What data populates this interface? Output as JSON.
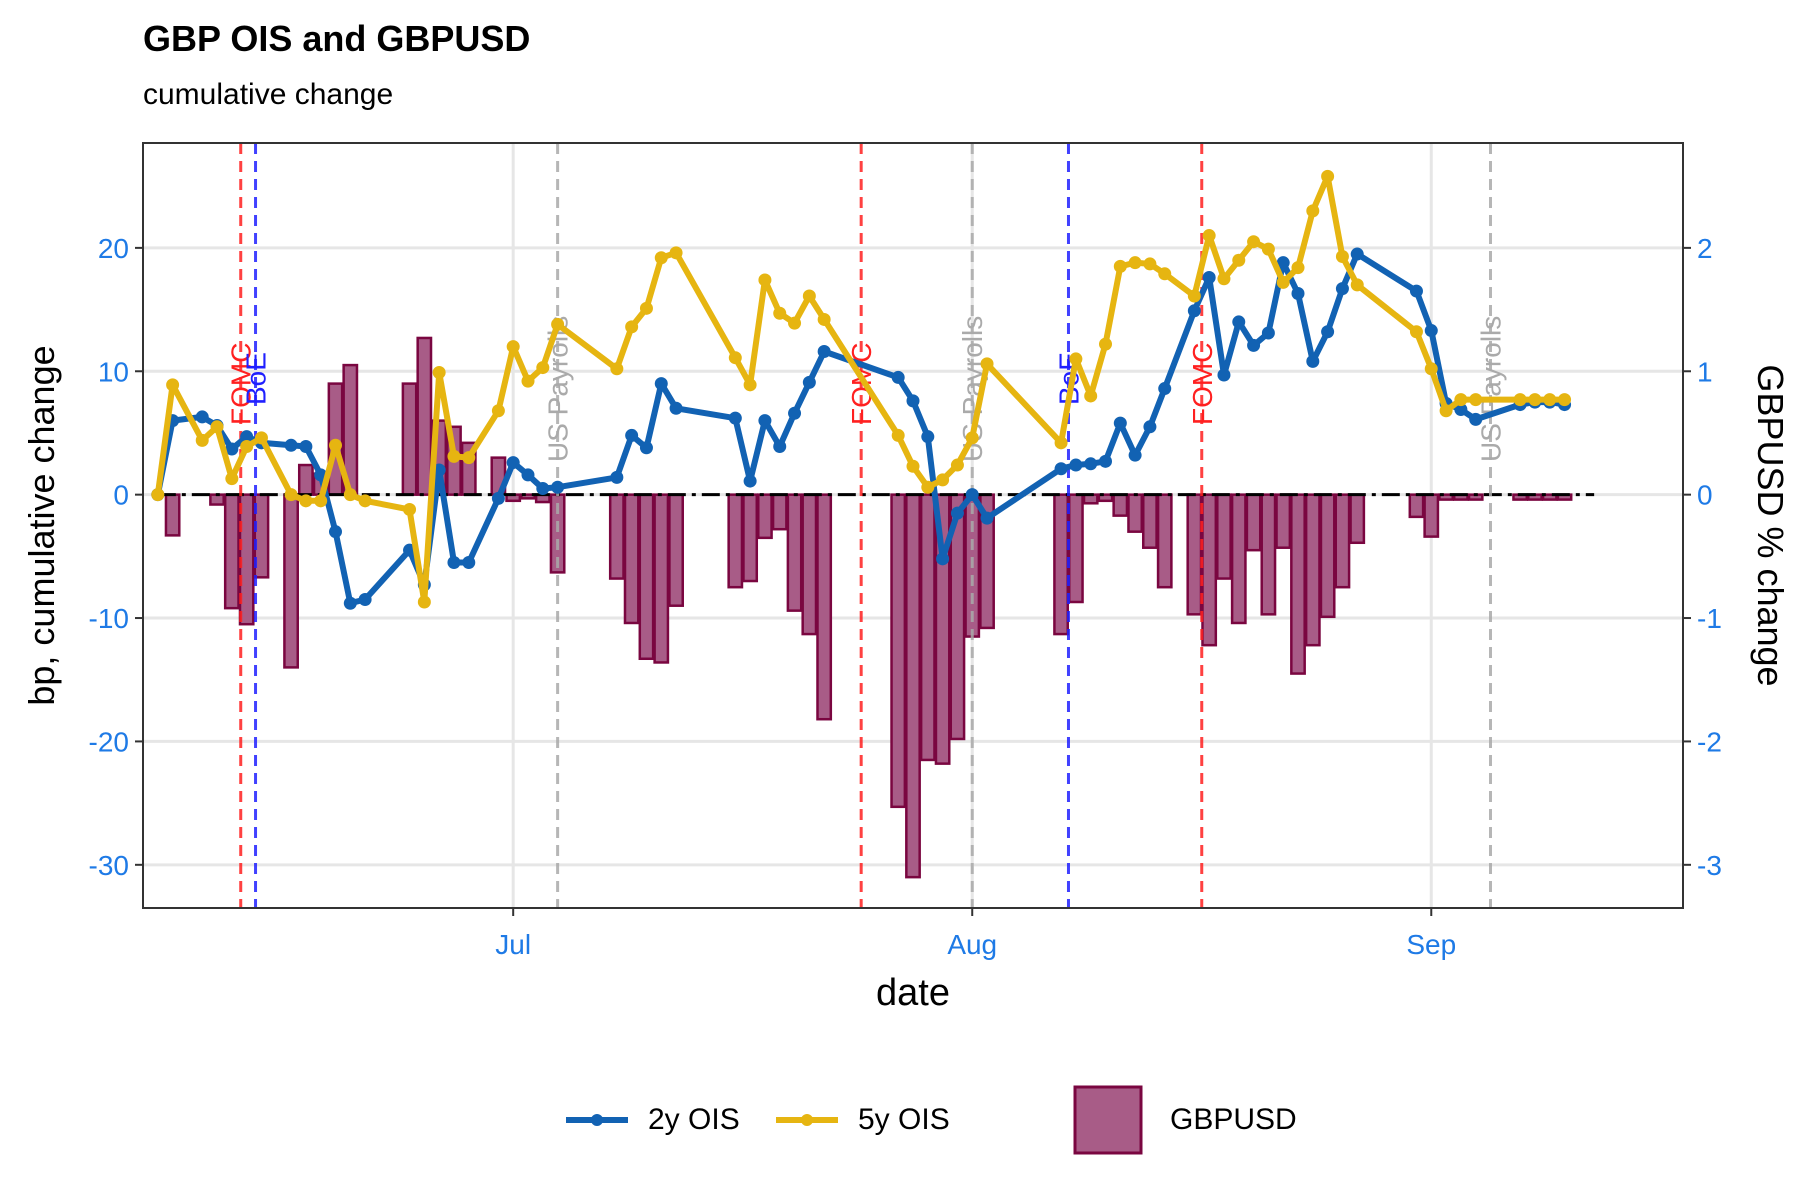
{
  "title": "GBP OIS and GBPUSD",
  "subtitle": "cumulative change",
  "colors": {
    "ois2y": "#1262b3",
    "ois5y": "#e6b511",
    "gbpusd_fill": "#a85c87",
    "gbpusd_stroke": "#7a0640",
    "fomc": "#ff2020",
    "boe": "#2020ff",
    "payrolls": "#aaaaaa",
    "tick_text": "#1e7ae6"
  },
  "legend": {
    "ois2y": "2y OIS",
    "ois5y": "5y OIS",
    "gbpusd": "GBPUSD"
  },
  "chart_data": {
    "type": "line",
    "xlabel": "date",
    "ylabel": "bp, cumulative change",
    "y2label": "GBPUSD % change",
    "xlim": [
      -6,
      98
    ],
    "ylim": [
      -33.5,
      28.5
    ],
    "y2lim": [
      -3.35,
      2.85
    ],
    "x_ticks": [
      {
        "label": "Jul",
        "x": 19
      },
      {
        "label": "Aug",
        "x": 50
      },
      {
        "label": "Sep",
        "x": 81
      }
    ],
    "y_ticks": [
      -30,
      -20,
      -10,
      0,
      10,
      20
    ],
    "y2_ticks": [
      -3,
      -2,
      -1,
      0,
      1,
      2
    ],
    "grid": true,
    "reference_line": 0,
    "legend_position": "bottom",
    "events": [
      {
        "label": "FOMC",
        "x": 0.6,
        "type": "fomc"
      },
      {
        "label": "BoE",
        "x": 1.6,
        "type": "boe"
      },
      {
        "label": "US Payrolls",
        "x": 22,
        "type": "payrolls"
      },
      {
        "label": "FOMC",
        "x": 42.5,
        "type": "fomc"
      },
      {
        "label": "US Payrolls",
        "x": 50,
        "type": "payrolls"
      },
      {
        "label": "BoE",
        "x": 56.5,
        "type": "boe"
      },
      {
        "label": "FOMC",
        "x": 65.5,
        "type": "fomc"
      },
      {
        "label": "US Payrolls",
        "x": 85,
        "type": "payrolls"
      }
    ],
    "series": [
      {
        "name": "2y OIS",
        "type": "line",
        "x": [
          -5,
          -4,
          -2,
          -1,
          0,
          1,
          2,
          4,
          5,
          6,
          7,
          8,
          9,
          12,
          13,
          14,
          15,
          16,
          18,
          19,
          20,
          21,
          22,
          26,
          27,
          28,
          29,
          30,
          34,
          35,
          36,
          37,
          38,
          39,
          40,
          45,
          46,
          47,
          48,
          49,
          50,
          51,
          56,
          57,
          58,
          59,
          60,
          61,
          62,
          63,
          65,
          66,
          67,
          68,
          69,
          70,
          71,
          72,
          73,
          74,
          75,
          76,
          80,
          81,
          82,
          83,
          84,
          87,
          88,
          89,
          90
        ],
        "y": [
          0,
          6,
          6.3,
          5.6,
          3.7,
          4.7,
          4.2,
          4,
          3.9,
          1.6,
          -3,
          -8.8,
          -8.5,
          -4.5,
          -7.3,
          2,
          -5.5,
          -5.5,
          -0.3,
          2.6,
          1.6,
          0.5,
          0.6,
          1.4,
          4.8,
          3.8,
          9,
          7,
          6.2,
          1.1,
          6,
          3.9,
          6.6,
          9.1,
          11.6,
          9.5,
          7.6,
          4.7,
          -5.2,
          -1.5,
          0,
          -1.9,
          2.1,
          2.4,
          2.5,
          2.7,
          5.8,
          3.2,
          5.5,
          8.6,
          14.9,
          17.6,
          9.7,
          14,
          12.1,
          13.1,
          18.8,
          16.3,
          10.8,
          13.2,
          16.7,
          19.5,
          16.5,
          13.3,
          7.4,
          6.9,
          6.1,
          7.3,
          7.5,
          7.5,
          7.3
        ]
      },
      {
        "name": "5y OIS",
        "type": "line",
        "x": [
          -5,
          -4,
          -2,
          -1,
          0,
          1,
          2,
          4,
          5,
          6,
          7,
          8,
          9,
          12,
          13,
          14,
          15,
          16,
          18,
          19,
          20,
          21,
          22,
          26,
          27,
          28,
          29,
          30,
          34,
          35,
          36,
          37,
          38,
          39,
          40,
          45,
          46,
          47,
          48,
          49,
          50,
          51,
          56,
          57,
          58,
          59,
          60,
          61,
          62,
          63,
          65,
          66,
          67,
          68,
          69,
          70,
          71,
          72,
          73,
          74,
          75,
          76,
          80,
          81,
          82,
          83,
          84,
          87,
          88,
          89,
          90
        ],
        "y": [
          0,
          8.9,
          4.4,
          5.5,
          1.3,
          3.9,
          4.6,
          0,
          -0.5,
          -0.5,
          4,
          0,
          -0.5,
          -1.2,
          -8.7,
          9.9,
          3.1,
          3,
          6.8,
          12,
          9.2,
          10.3,
          13.8,
          10.2,
          13.6,
          15.1,
          19.2,
          19.6,
          11.1,
          8.9,
          17.4,
          14.7,
          13.9,
          16.1,
          14.2,
          4.8,
          2.3,
          0.6,
          1.2,
          2.4,
          4.6,
          10.6,
          4.2,
          11,
          8,
          12.2,
          18.5,
          18.8,
          18.7,
          17.9,
          16.1,
          21,
          17.5,
          19,
          20.5,
          19.9,
          17.2,
          18.4,
          23,
          25.8,
          19.3,
          17,
          13.2,
          10.2,
          6.8,
          7.7,
          7.7,
          7.7,
          7.7,
          7.7,
          7.7
        ]
      },
      {
        "name": "GBPUSD",
        "type": "bar",
        "x": [
          -4,
          -1,
          0,
          1,
          2,
          4,
          5,
          6,
          7,
          8,
          12,
          13,
          14,
          15,
          16,
          18,
          19,
          20,
          21,
          22,
          26,
          27,
          28,
          29,
          30,
          34,
          35,
          36,
          37,
          38,
          39,
          40,
          45,
          46,
          47,
          48,
          49,
          50,
          51,
          56,
          57,
          58,
          59,
          60,
          61,
          62,
          63,
          65,
          66,
          67,
          68,
          69,
          70,
          71,
          72,
          73,
          74,
          75,
          76,
          80,
          81,
          82,
          83,
          84,
          87,
          88,
          89,
          90
        ],
        "y": [
          -0.33,
          -0.08,
          -0.92,
          -1.05,
          -0.67,
          -1.4,
          0.24,
          0.17,
          0.9,
          1.05,
          0.9,
          1.27,
          0.6,
          0.55,
          0.42,
          0.3,
          -0.05,
          -0.03,
          -0.06,
          -0.63,
          -0.68,
          -1.04,
          -1.33,
          -1.36,
          -0.9,
          -0.75,
          -0.7,
          -0.35,
          -0.28,
          -0.94,
          -1.13,
          -1.82,
          -2.53,
          -3.1,
          -2.15,
          -2.18,
          -1.98,
          -1.15,
          -1.08,
          -1.13,
          -0.87,
          -0.07,
          -0.05,
          -0.17,
          -0.3,
          -0.43,
          -0.75,
          -0.97,
          -1.22,
          -0.68,
          -1.04,
          -0.45,
          -0.97,
          -0.43,
          -1.45,
          -1.22,
          -0.99,
          -0.75,
          -0.39,
          -0.18,
          -0.34,
          -0.04,
          -0.04,
          -0.04,
          -0.04,
          -0.04,
          -0.04,
          -0.04
        ]
      }
    ]
  }
}
